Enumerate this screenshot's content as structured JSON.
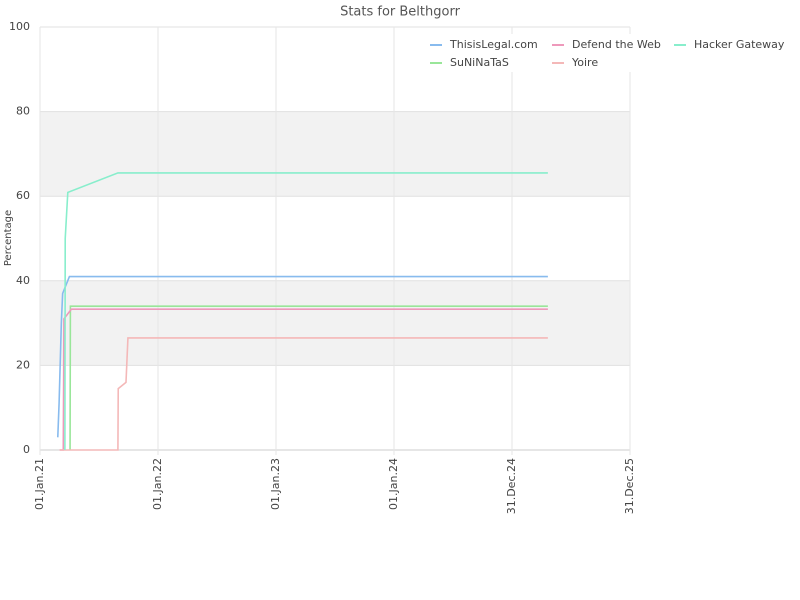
{
  "chart_data": {
    "type": "line",
    "title": "Stats for Belthgorr",
    "y_label": "Percentage",
    "xlim": [
      "2021-01-01",
      "2025-12-31"
    ],
    "xticks": [
      {
        "value": "2021-01-01",
        "label": "01.Jan.21"
      },
      {
        "value": "2022-01-01",
        "label": "01.Jan.22"
      },
      {
        "value": "2023-01-01",
        "label": "01.Jan.23"
      },
      {
        "value": "2024-01-01",
        "label": "01.Jan.24"
      },
      {
        "value": "2024-12-31",
        "label": "31.Dec.24"
      },
      {
        "value": "2025-12-31",
        "label": "31.Dec.25"
      }
    ],
    "ylim": [
      0,
      100
    ],
    "yticks": [
      0,
      20,
      40,
      60,
      80,
      100
    ],
    "grid": true,
    "legend": "top-right",
    "series": [
      {
        "name": "ThisisLegal.com",
        "color": "#88bbee",
        "x": [
          "2021-02-25",
          "2021-03-01",
          "2021-03-08",
          "2021-03-12",
          "2021-04-02",
          "2025-04-21"
        ],
        "values": [
          3,
          11,
          30,
          37,
          41,
          41
        ]
      },
      {
        "name": "SuNiNaTaS",
        "color": "#99e699",
        "x": [
          "2021-04-04",
          "2021-04-05",
          "2025-04-21"
        ],
        "values": [
          0,
          34,
          34
        ]
      },
      {
        "name": "Defend the Web",
        "color": "#ee99bb",
        "x": [
          "2021-03-03",
          "2021-03-14",
          "2021-03-16",
          "2021-04-08",
          "2025-04-21"
        ],
        "values": [
          0,
          0,
          31,
          33.3,
          33.3
        ]
      },
      {
        "name": "Yoire",
        "color": "#f4b8b8",
        "x": [
          "2021-03-03",
          "2021-08-30",
          "2021-08-31",
          "2021-09-24",
          "2021-09-30",
          "2025-04-21"
        ],
        "values": [
          0,
          0,
          14.5,
          16,
          26.5,
          26.5
        ]
      },
      {
        "name": "Hacker Gateway",
        "color": "#88eecc",
        "x": [
          "2021-03-19",
          "2021-03-20",
          "2021-03-28",
          "2021-08-30",
          "2025-04-21"
        ],
        "values": [
          0,
          50,
          60.9,
          65.5,
          65.5
        ]
      }
    ]
  }
}
